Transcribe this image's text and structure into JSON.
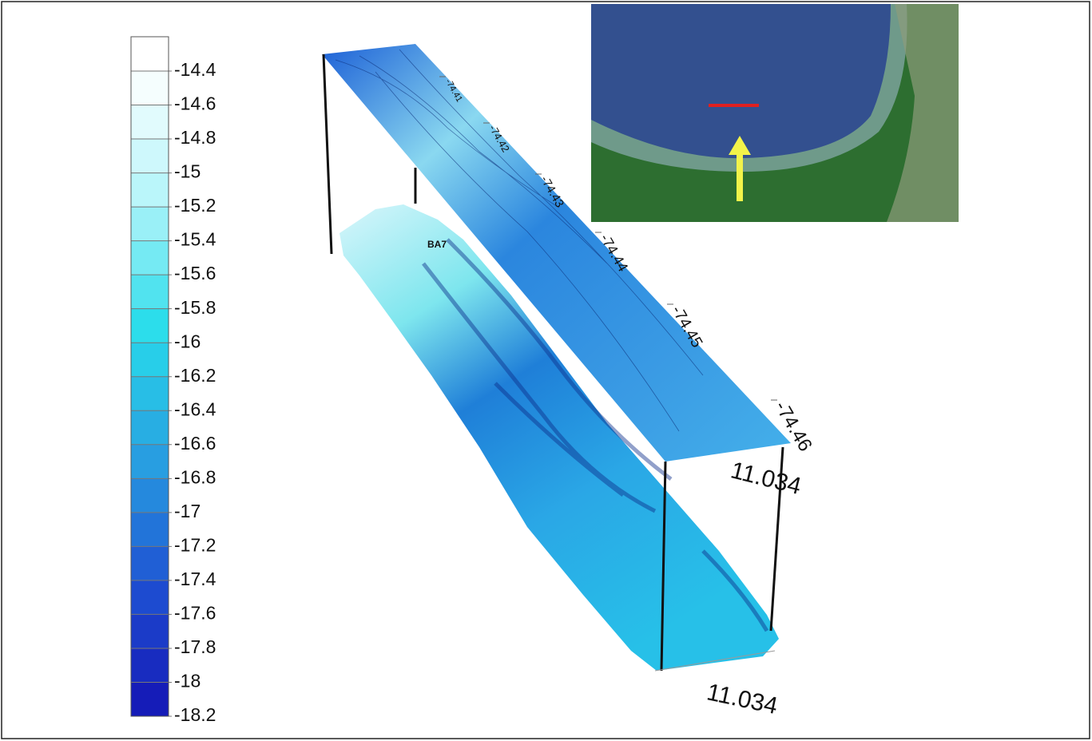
{
  "colorbar": {
    "ticks": [
      "-14.4",
      "-14.6",
      "-14.8",
      "-15",
      "-15.2",
      "-15.4",
      "-15.6",
      "-15.8",
      "-16",
      "-16.2",
      "-16.4",
      "-16.6",
      "-16.8",
      "-17",
      "-17.2",
      "-17.4",
      "-17.6",
      "-17.8",
      "-18",
      "-18.2"
    ]
  },
  "top_surface": {
    "axis_labels": [
      "-74.41",
      "-74.42",
      "-74.43",
      "-74.44",
      "-74.45",
      "-74.46"
    ],
    "latitude_label": "11.034"
  },
  "bottom_surface": {
    "station_label": "BA7",
    "latitude_label": "11.034"
  }
}
